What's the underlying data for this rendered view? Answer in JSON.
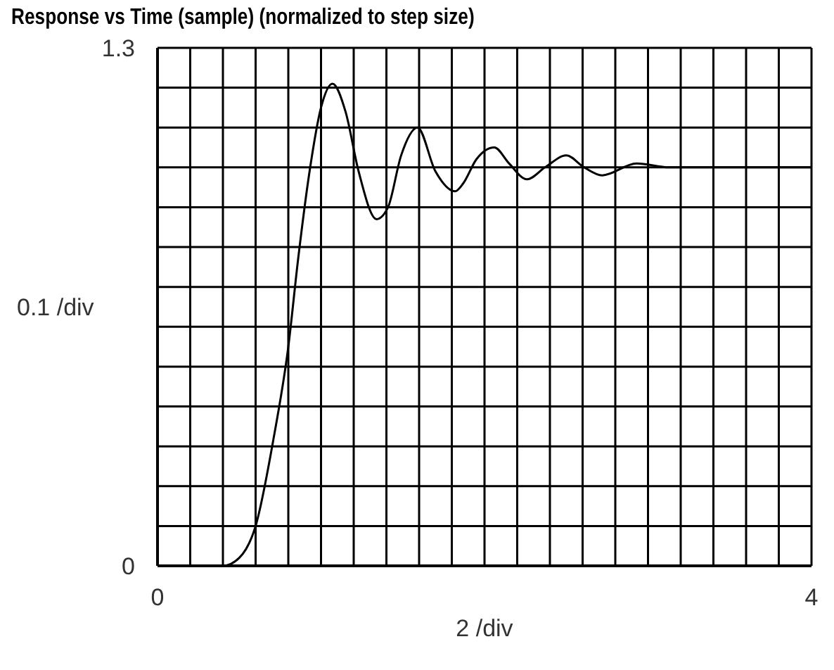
{
  "chart_data": {
    "type": "line",
    "title": "Response vs Time (sample) (normalized to step size)",
    "xlabel": "2 /div",
    "ylabel": "0.1 /div",
    "xlim": [
      0,
      4
    ],
    "ylim": [
      0,
      1.3
    ],
    "xticks": [
      0,
      {
        "value": 0.2,
        "label": null
      },
      {
        "value": 0.4,
        "label": null
      },
      {
        "value": 0.6,
        "label": null
      },
      {
        "value": 0.8,
        "label": null
      },
      {
        "value": 1,
        "label": null
      },
      {
        "value": 1.2,
        "label": null
      },
      {
        "value": 1.4,
        "label": null
      },
      {
        "value": 1.6,
        "label": null
      },
      {
        "value": 1.8,
        "label": null
      },
      {
        "value": 2,
        "label": null
      },
      {
        "value": 2.2,
        "label": null
      },
      {
        "value": 2.4,
        "label": null
      },
      {
        "value": 2.6,
        "label": null
      },
      {
        "value": 2.8,
        "label": null
      },
      {
        "value": 3,
        "label": null
      },
      {
        "value": 3.2,
        "label": null
      },
      {
        "value": 3.4,
        "label": null
      },
      {
        "value": 3.6,
        "label": null
      },
      {
        "value": 3.8,
        "label": null
      },
      4
    ],
    "yticks": [
      0,
      {
        "value": 0.1,
        "label": null
      },
      {
        "value": 0.2,
        "label": null
      },
      {
        "value": 0.3,
        "label": null
      },
      {
        "value": 0.4,
        "label": null
      },
      {
        "value": 0.5,
        "label": null
      },
      {
        "value": 0.6,
        "label": null
      },
      {
        "value": 0.7,
        "label": null
      },
      {
        "value": 0.8,
        "label": null
      },
      {
        "value": 0.9,
        "label": null
      },
      {
        "value": 1,
        "label": null
      },
      {
        "value": 1.1,
        "label": null
      },
      {
        "value": 1.2,
        "label": null
      },
      1.3
    ],
    "grid": true,
    "marker": "none",
    "line_style": "solid",
    "x": [
      0,
      0.2,
      0.4,
      0.5,
      0.6,
      0.71,
      0.8,
      0.86,
      0.93,
      1.0,
      1.07,
      1.15,
      1.23,
      1.34,
      1.41,
      1.49,
      1.59,
      1.7,
      1.82,
      1.87,
      1.95,
      2.06,
      2.15,
      2.26,
      2.37,
      2.5,
      2.61,
      2.72,
      2.93,
      3.13,
      3.35,
      3.55,
      3.76,
      4
    ],
    "series": [
      {
        "color": "#000000",
        "values": [
          0,
          0,
          0,
          0.02,
          0.1,
          0.32,
          0.55,
          0.77,
          0.99,
          1.15,
          1.21,
          1.14,
          0.99,
          0.87,
          0.9,
          1.03,
          1.1,
          0.99,
          0.94,
          0.96,
          1.02,
          1.05,
          1.01,
          0.97,
          1.0,
          1.03,
          1.0,
          0.98,
          1.01,
          1.0,
          1.0,
          1.0,
          1.0,
          1.0
        ]
      }
    ]
  }
}
